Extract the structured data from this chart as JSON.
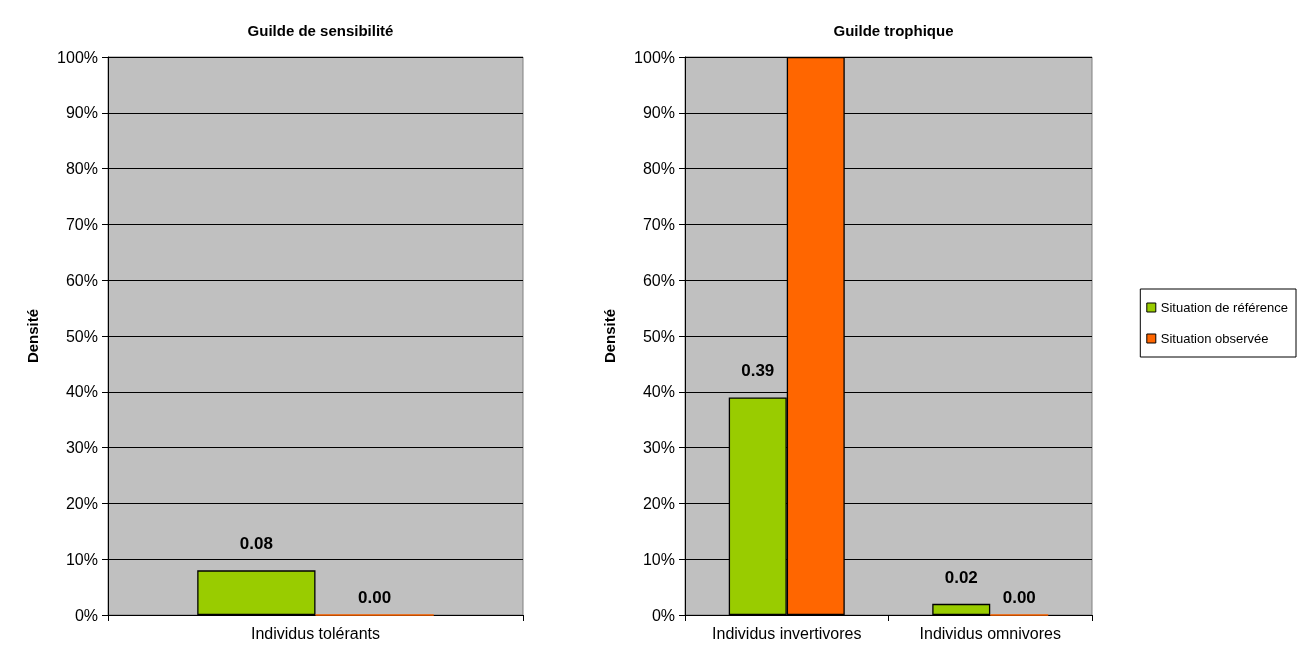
{
  "chart_data": [
    {
      "type": "bar",
      "title": "Guilde de sensibilité",
      "ylabel": "Densité",
      "categories": [
        "Individus tolérants"
      ],
      "series": [
        {
          "color": "#99cc00",
          "values": [
            0.08
          ],
          "value_labels": [
            "0.08"
          ]
        },
        {
          "color": "#ff6600",
          "values": [
            0.0
          ],
          "value_labels": [
            "0.00"
          ]
        }
      ],
      "ylim": [
        0,
        1
      ],
      "yticks": [
        {
          "value": 0,
          "label": "0%"
        },
        {
          "value": 0.1,
          "label": "10%"
        },
        {
          "value": 0.2,
          "label": "20%"
        },
        {
          "value": 0.3,
          "label": "30%"
        },
        {
          "value": 0.4,
          "label": "40%"
        },
        {
          "value": 0.5,
          "label": "50%"
        },
        {
          "value": 0.6,
          "label": "60%"
        },
        {
          "value": 0.7,
          "label": "70%"
        },
        {
          "value": 0.8,
          "label": "80%"
        },
        {
          "value": 0.9,
          "label": "90%"
        },
        {
          "value": 1,
          "label": "100%"
        }
      ],
      "grid": "y",
      "legend": false
    },
    {
      "type": "bar",
      "title": "Guilde trophique",
      "ylabel": "Densité",
      "categories": [
        "Individus invertivores",
        "Individus omnivores"
      ],
      "series": [
        {
          "name": "Situation de référence",
          "color": "#99cc00",
          "values": [
            0.39,
            0.02
          ],
          "value_labels": [
            "0.39",
            "0.02"
          ]
        },
        {
          "name": "Situation observée",
          "color": "#ff6600",
          "values": [
            1.0,
            0.0
          ],
          "value_labels": [
            null,
            "0.00"
          ]
        }
      ],
      "ylim": [
        0,
        1
      ],
      "yticks": [
        {
          "value": 0,
          "label": "0%"
        },
        {
          "value": 0.1,
          "label": "10%"
        },
        {
          "value": 0.2,
          "label": "20%"
        },
        {
          "value": 0.3,
          "label": "30%"
        },
        {
          "value": 0.4,
          "label": "40%"
        },
        {
          "value": 0.5,
          "label": "50%"
        },
        {
          "value": 0.6,
          "label": "60%"
        },
        {
          "value": 0.7,
          "label": "70%"
        },
        {
          "value": 0.8,
          "label": "80%"
        },
        {
          "value": 0.9,
          "label": "90%"
        },
        {
          "value": 1,
          "label": "100%"
        }
      ],
      "grid": "y",
      "legend": "right"
    }
  ]
}
